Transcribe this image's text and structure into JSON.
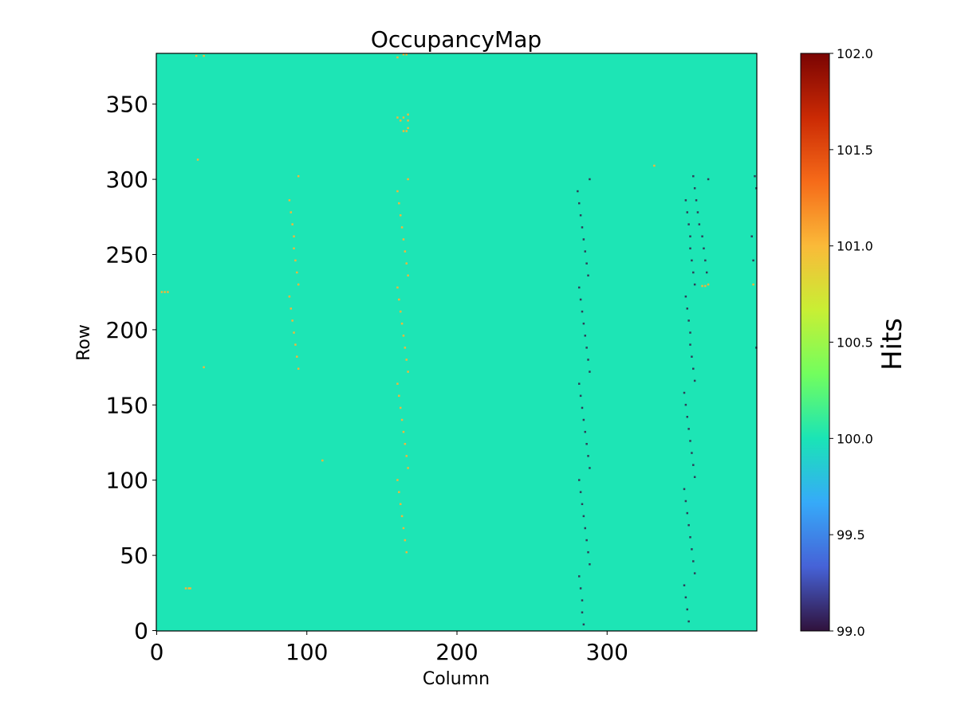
{
  "chart_data": {
    "type": "heatmap",
    "title": "OccupancyMap",
    "xlabel": "Column",
    "ylabel": "Row",
    "xlim": [
      0,
      400
    ],
    "ylim": [
      0,
      384
    ],
    "xticks": [
      0,
      100,
      200,
      300
    ],
    "yticks": [
      0,
      50,
      100,
      150,
      200,
      250,
      300,
      350
    ],
    "background_value": 100.0,
    "colorbar": {
      "label": "Hits",
      "range": [
        99.0,
        102.0
      ],
      "ticks": [
        "99.0",
        "99.5",
        "100.0",
        "100.5",
        "101.0",
        "101.5",
        "102.0"
      ],
      "colormap_stops": [
        "#30123b",
        "#4662d7",
        "#36aaf9",
        "#1ae4b6",
        "#72fe5e",
        "#c8ef34",
        "#faba39",
        "#f66b19",
        "#cb2a04",
        "#7a0403"
      ]
    },
    "value_colors": {
      "99": "#2e3d58",
      "101": "#f2b53a"
    },
    "runs_note": "diagonal runs of hot/cold pixels: col_start→col_end over row_start→row_end, every 'step' rows",
    "runs": [
      {
        "value": 99,
        "col": [
          280,
          287
        ],
        "row": [
          292,
          236
        ],
        "step": 8
      },
      {
        "value": 99,
        "col": [
          281,
          288
        ],
        "row": [
          228,
          172
        ],
        "step": 8
      },
      {
        "value": 99,
        "col": [
          281,
          288
        ],
        "row": [
          164,
          108
        ],
        "step": 8
      },
      {
        "value": 99,
        "col": [
          281,
          288
        ],
        "row": [
          100,
          44
        ],
        "step": 8
      },
      {
        "value": 99,
        "col": [
          281,
          284
        ],
        "row": [
          36,
          4
        ],
        "step": 8
      },
      {
        "value": 99,
        "col": [
          352,
          358
        ],
        "row": [
          286,
          230
        ],
        "step": 8
      },
      {
        "value": 99,
        "col": [
          358,
          366
        ],
        "row": [
          294,
          236
        ],
        "step": 8
      },
      {
        "value": 99,
        "col": [
          352,
          358
        ],
        "row": [
          222,
          166
        ],
        "step": 8
      },
      {
        "value": 99,
        "col": [
          351,
          358
        ],
        "row": [
          158,
          102
        ],
        "step": 8
      },
      {
        "value": 99,
        "col": [
          351,
          358
        ],
        "row": [
          94,
          38
        ],
        "step": 8
      },
      {
        "value": 99,
        "col": [
          351,
          354
        ],
        "row": [
          30,
          6
        ],
        "step": 8
      },
      {
        "value": 101,
        "col": [
          88,
          94
        ],
        "row": [
          286,
          230
        ],
        "step": 8
      },
      {
        "value": 101,
        "col": [
          88,
          94
        ],
        "row": [
          222,
          174
        ],
        "step": 8
      },
      {
        "value": 101,
        "col": [
          160,
          167
        ],
        "row": [
          292,
          236
        ],
        "step": 8
      },
      {
        "value": 101,
        "col": [
          160,
          167
        ],
        "row": [
          228,
          172
        ],
        "step": 8
      },
      {
        "value": 101,
        "col": [
          160,
          167
        ],
        "row": [
          164,
          108
        ],
        "step": 8
      },
      {
        "value": 101,
        "col": [
          160,
          166
        ],
        "row": [
          100,
          52
        ],
        "step": 8
      }
    ],
    "points": [
      {
        "col": 288,
        "row": 300,
        "value": 99
      },
      {
        "col": 357,
        "row": 302,
        "value": 99
      },
      {
        "col": 367,
        "row": 300,
        "value": 99
      },
      {
        "col": 398,
        "row": 302,
        "value": 99
      },
      {
        "col": 399,
        "row": 294,
        "value": 99
      },
      {
        "col": 396,
        "row": 262,
        "value": 99
      },
      {
        "col": 397,
        "row": 246,
        "value": 99
      },
      {
        "col": 399,
        "row": 188,
        "value": 99
      },
      {
        "col": 94,
        "row": 302,
        "value": 101
      },
      {
        "col": 167,
        "row": 300,
        "value": 101
      },
      {
        "col": 331,
        "row": 309,
        "value": 101
      },
      {
        "col": 363,
        "row": 229,
        "value": 101
      },
      {
        "col": 365,
        "row": 229,
        "value": 101
      },
      {
        "col": 367,
        "row": 230,
        "value": 101
      },
      {
        "col": 397,
        "row": 230,
        "value": 101
      },
      {
        "col": 27,
        "row": 313,
        "value": 101
      },
      {
        "col": 31,
        "row": 175,
        "value": 101
      },
      {
        "col": 110,
        "row": 113,
        "value": 101
      },
      {
        "col": 19,
        "row": 28,
        "value": 101
      },
      {
        "col": 21,
        "row": 28,
        "value": 101
      },
      {
        "col": 22,
        "row": 28,
        "value": 101
      },
      {
        "col": 3,
        "row": 225,
        "value": 101
      },
      {
        "col": 5,
        "row": 225,
        "value": 101
      },
      {
        "col": 7,
        "row": 225,
        "value": 101
      },
      {
        "col": 26,
        "row": 382,
        "value": 101
      },
      {
        "col": 31,
        "row": 382,
        "value": 101
      },
      {
        "col": 160,
        "row": 381,
        "value": 101
      },
      {
        "col": 164,
        "row": 383,
        "value": 101
      },
      {
        "col": 166,
        "row": 383,
        "value": 101
      },
      {
        "col": 160,
        "row": 341,
        "value": 101
      },
      {
        "col": 162,
        "row": 339,
        "value": 101
      },
      {
        "col": 164,
        "row": 341,
        "value": 101
      },
      {
        "col": 167,
        "row": 343,
        "value": 101
      },
      {
        "col": 167,
        "row": 339,
        "value": 101
      },
      {
        "col": 164,
        "row": 332,
        "value": 101
      },
      {
        "col": 166,
        "row": 332,
        "value": 101
      },
      {
        "col": 167,
        "row": 334,
        "value": 101
      }
    ]
  }
}
